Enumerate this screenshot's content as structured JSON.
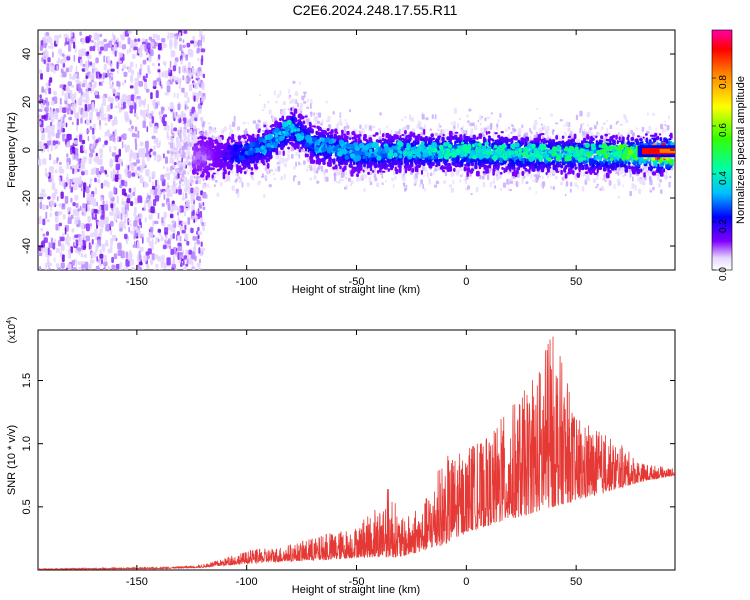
{
  "page": {
    "title": "C2E6.2024.248.17.55.R11"
  },
  "chart_data": [
    {
      "type": "heatmap",
      "title": "C2E6.2024.248.17.55.R11",
      "xlabel": "Height of straight line (km)",
      "ylabel": "Frequency (Hz)",
      "xlim": [
        -195,
        95
      ],
      "ylim": [
        -50,
        50
      ],
      "xticks": [
        -150,
        -100,
        -50,
        0,
        50
      ],
      "yticks": [
        -40,
        -20,
        0,
        20,
        40
      ],
      "colorbar": {
        "label": "Normalized spectral amplitude",
        "range": [
          0,
          1
        ],
        "ticks": [
          0.0,
          0.2,
          0.4,
          0.6,
          0.8
        ],
        "tick_labels": [
          "0.0",
          "0.2",
          "0.4",
          "0.6",
          "0.8"
        ]
      },
      "ridge": {
        "x": [
          -195,
          -150,
          -120,
          -100,
          -90,
          -80,
          -75,
          -70,
          -60,
          -50,
          -30,
          0,
          30,
          60,
          80,
          90
        ],
        "freq": [
          -2,
          -2,
          -2,
          -1,
          3,
          10,
          7,
          3,
          1,
          -1,
          0,
          0,
          -1,
          -1,
          -1,
          -1
        ],
        "peak_amplitude": [
          0.05,
          0.05,
          0.08,
          0.25,
          0.3,
          0.35,
          0.3,
          0.3,
          0.32,
          0.3,
          0.35,
          0.4,
          0.4,
          0.45,
          0.55,
          0.95
        ]
      },
      "noise_region": {
        "x": [
          -195,
          -130
        ],
        "freq": [
          -50,
          50
        ],
        "amplitude": 0.05
      }
    },
    {
      "type": "line",
      "xlabel": "Height of straight line (km)",
      "ylabel": "SNR (10 * v/v)",
      "y_multiplier_label": "(x10",
      "y_multiplier_exp": "4",
      "y_multiplier_close": ")",
      "xlim": [
        -195,
        95
      ],
      "ylim": [
        0,
        1.9
      ],
      "xticks": [
        -150,
        -100,
        -50,
        0,
        50
      ],
      "yticks": [
        0.5,
        1.0,
        1.5
      ],
      "ytick_labels": [
        "0.5",
        "1.0",
        "1.5"
      ],
      "color": "#e53935",
      "envelope": {
        "x": [
          -195,
          -140,
          -120,
          -100,
          -80,
          -60,
          -50,
          -40,
          -35,
          -30,
          -20,
          -10,
          0,
          10,
          20,
          30,
          40,
          50,
          60,
          70,
          80,
          95
        ],
        "y": [
          0.01,
          0.02,
          0.04,
          0.15,
          0.2,
          0.3,
          0.35,
          0.5,
          0.7,
          0.4,
          0.5,
          0.9,
          0.95,
          1.05,
          1.3,
          1.5,
          1.9,
          1.2,
          1.1,
          1.0,
          0.85,
          0.8
        ]
      },
      "baseline": {
        "x": [
          -195,
          -140,
          -120,
          -100,
          -80,
          -60,
          -50,
          -40,
          -30,
          -20,
          -10,
          0,
          10,
          20,
          30,
          40,
          50,
          60,
          70,
          80,
          95
        ],
        "y": [
          0.005,
          0.01,
          0.02,
          0.05,
          0.07,
          0.08,
          0.1,
          0.1,
          0.1,
          0.15,
          0.2,
          0.3,
          0.35,
          0.4,
          0.45,
          0.5,
          0.55,
          0.6,
          0.65,
          0.7,
          0.75
        ]
      }
    }
  ]
}
